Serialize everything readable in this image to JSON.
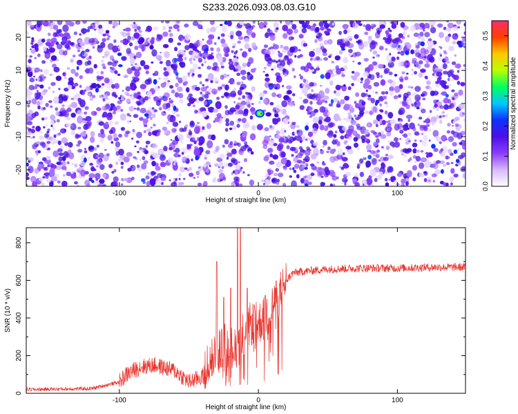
{
  "title": "S233.2026.093.08.03.G10",
  "chart_data": [
    {
      "type": "heatmap",
      "title": "S233.2026.093.08.03.G10",
      "xlabel": "Height of straight line (km)",
      "ylabel": "Frequency (Hz)",
      "xlim": [
        -167,
        149
      ],
      "ylim": [
        -25,
        25
      ],
      "xticks": [
        -100,
        0,
        100
      ],
      "yticks": [
        -20,
        -10,
        0,
        10,
        20
      ],
      "colorbar": {
        "label": "Normalized spectral amplitude",
        "range": [
          0,
          0.55
        ],
        "ticks": [
          "0.0",
          "0.1",
          "0.2",
          "0.3",
          "0.4",
          "0.5"
        ],
        "colors": [
          "#ffffff",
          "#d8b8ff",
          "#8a3cff",
          "#4b10e8",
          "#1030ff",
          "#00c8ff",
          "#00ff60",
          "#b8ff00",
          "#ffc800",
          "#ff4000",
          "#ff2a6a"
        ]
      },
      "gap_km": [
        -3,
        4
      ],
      "peak": {
        "x_km": 1,
        "freq_hz": -3,
        "amplitude": 0.45
      }
    },
    {
      "type": "line",
      "xlabel": "Height of straight line (km)",
      "ylabel": "SNR (10 * v/v)",
      "xlim": [
        -167,
        149
      ],
      "ylim": [
        0,
        880
      ],
      "xticks": [
        -100,
        0,
        100
      ],
      "yticks": [
        0,
        200,
        400,
        600,
        800
      ],
      "series": [
        {
          "name": "SNR",
          "color": "#e8312a",
          "x": [
            -167,
            -120,
            -100,
            -95,
            -85,
            -75,
            -60,
            -50,
            -40,
            -35,
            -30,
            -25,
            -20,
            -15,
            -12,
            -10,
            -5,
            0,
            5,
            10,
            15,
            20,
            25,
            35,
            50,
            75,
            100,
            125,
            149
          ],
          "y": [
            20,
            25,
            60,
            100,
            140,
            150,
            120,
            60,
            90,
            170,
            210,
            260,
            240,
            260,
            300,
            340,
            370,
            370,
            410,
            460,
            520,
            600,
            640,
            650,
            660,
            665,
            665,
            670,
            670
          ],
          "spikes": [
            {
              "x": -30,
              "y": 700
            },
            {
              "x": -25,
              "y": 510
            },
            {
              "x": -20,
              "y": 560
            },
            {
              "x": -15,
              "y": 880
            },
            {
              "x": -13,
              "y": 880
            },
            {
              "x": -8,
              "y": 560
            },
            {
              "x": -3,
              "y": 470
            },
            {
              "x": 5,
              "y": 520
            }
          ]
        }
      ]
    }
  ]
}
